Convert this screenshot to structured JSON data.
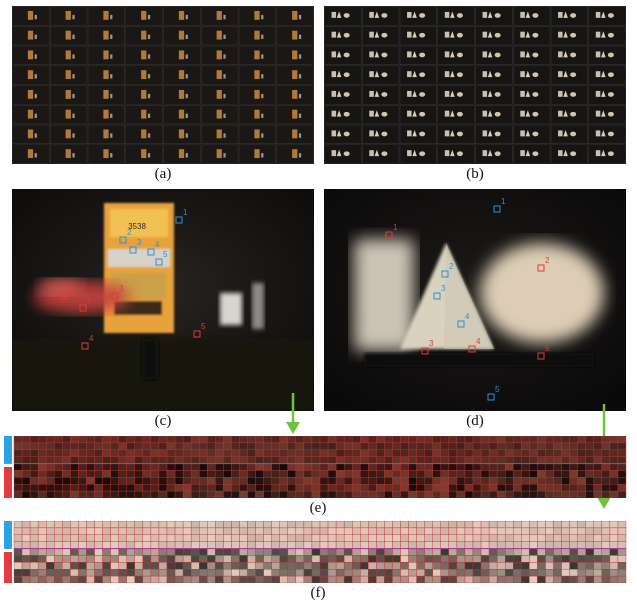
{
  "figure": {
    "captions": {
      "a": "(a)",
      "b": "(b)",
      "c": "(c)",
      "d": "(d)",
      "e": "(e)",
      "f": "(f)"
    },
    "panel_c": {
      "red_markers": [
        "1",
        "2",
        "3",
        "4",
        "5"
      ],
      "blue_markers": [
        "1",
        "2",
        "3",
        "4",
        "5"
      ],
      "box_label_number": "3538"
    },
    "panel_d": {
      "red_markers": [
        "1",
        "2",
        "3",
        "4",
        "5"
      ],
      "blue_markers": [
        "1",
        "2",
        "3",
        "4",
        "5"
      ]
    }
  },
  "colors": {
    "red_marker": "#e0393b",
    "blue_marker": "#2f8fd4",
    "arrow_green": "#6cc13e",
    "side_bar_blue": "#2aa3e0",
    "side_bar_red": "#e23b40"
  }
}
